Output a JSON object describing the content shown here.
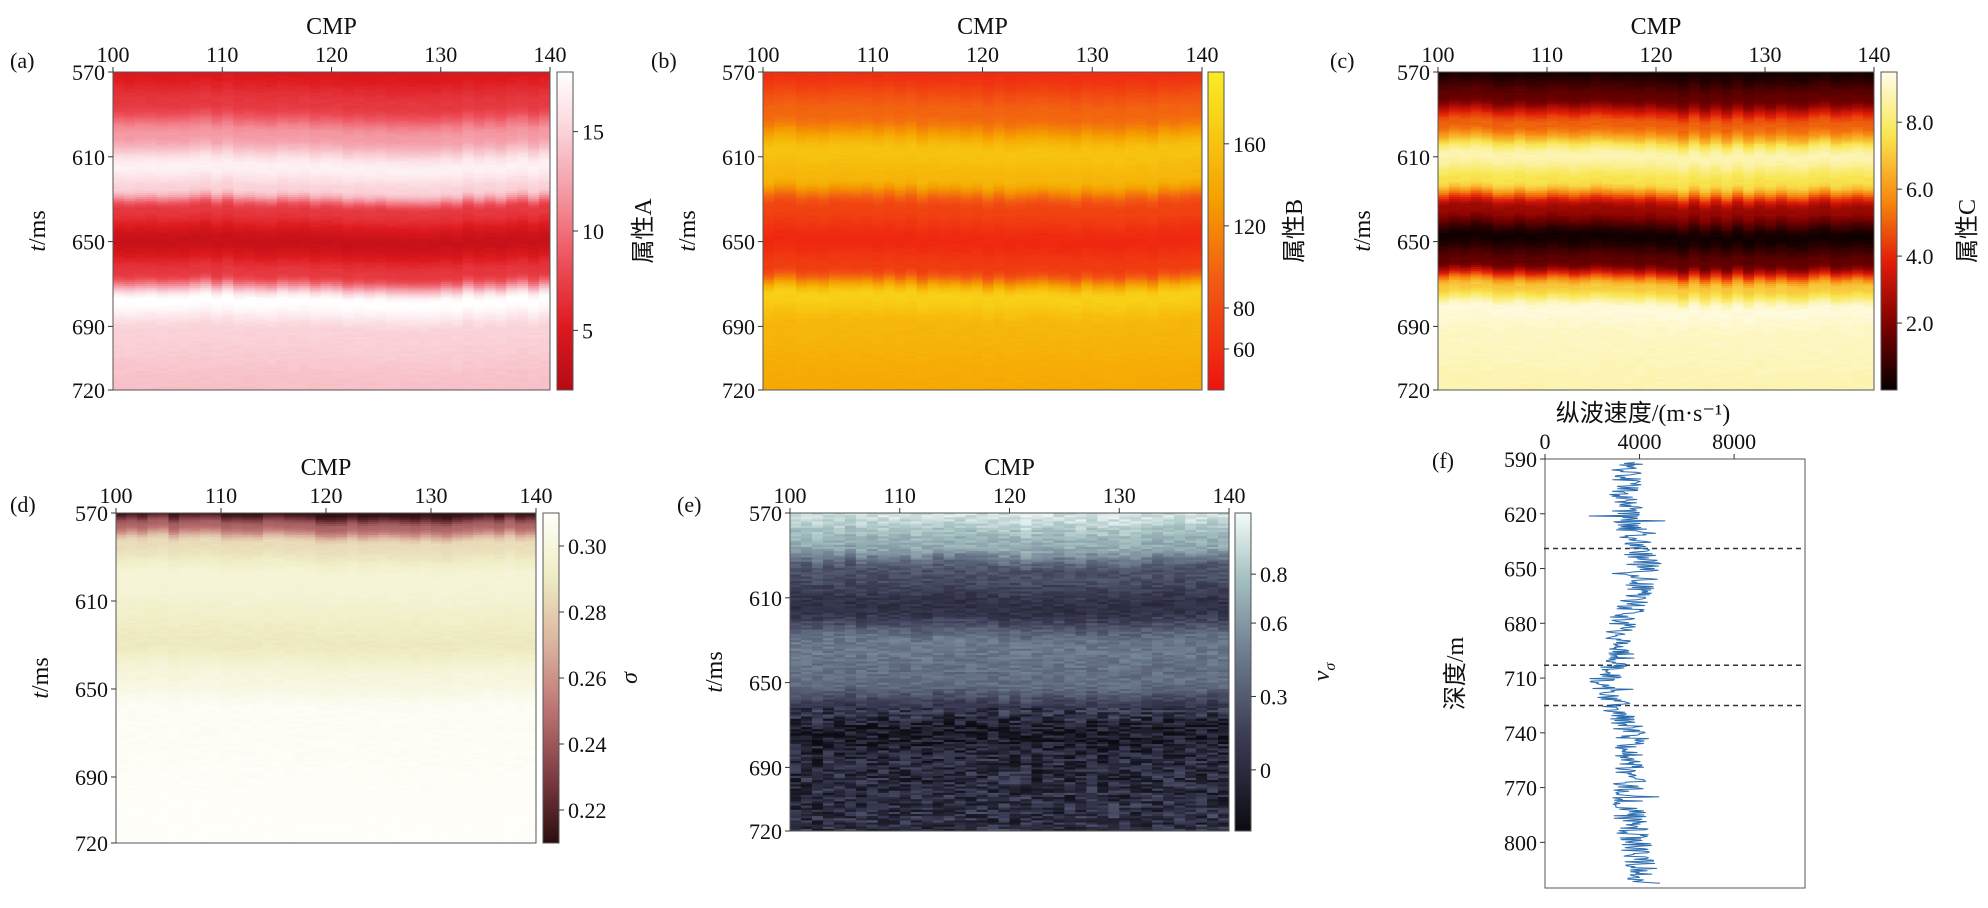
{
  "chart_data": [
    {
      "id": "a",
      "type": "heatmap",
      "panel_label": "(a)",
      "xlabel": "CMP",
      "ylabel_italic": "t",
      "ylabel_rest": "/ms",
      "x_range": [
        100,
        140
      ],
      "y_range": [
        570,
        720
      ],
      "x_ticks": [
        "100",
        "110",
        "120",
        "130",
        "140"
      ],
      "y_ticks": [
        "570",
        "610",
        "650",
        "690",
        "720"
      ],
      "colormap": "reds",
      "colorbar_label": "属性A",
      "colorbar_range": [
        2,
        18
      ],
      "colorbar_ticks": [
        "5",
        "10",
        "15"
      ],
      "colorbar_tick_values": [
        5,
        10,
        15
      ],
      "profile": [
        {
          "t": 570,
          "v": 5
        },
        {
          "t": 585,
          "v": 7
        },
        {
          "t": 600,
          "v": 12
        },
        {
          "t": 615,
          "v": 17
        },
        {
          "t": 625,
          "v": 15
        },
        {
          "t": 635,
          "v": 7
        },
        {
          "t": 650,
          "v": 3.5
        },
        {
          "t": 665,
          "v": 7
        },
        {
          "t": 678,
          "v": 18
        },
        {
          "t": 692,
          "v": 15
        },
        {
          "t": 720,
          "v": 14
        }
      ]
    },
    {
      "id": "b",
      "type": "heatmap",
      "panel_label": "(b)",
      "xlabel": "CMP",
      "ylabel_italic": "t",
      "ylabel_rest": "/ms",
      "x_range": [
        100,
        140
      ],
      "y_range": [
        570,
        720
      ],
      "x_ticks": [
        "100",
        "110",
        "120",
        "130",
        "140"
      ],
      "y_ticks": [
        "570",
        "610",
        "650",
        "690",
        "720"
      ],
      "colormap": "autumn",
      "colorbar_label": "属性B",
      "colorbar_range": [
        40,
        195
      ],
      "colorbar_ticks": [
        "60",
        "80",
        "120",
        "160"
      ],
      "colorbar_tick_values": [
        60,
        80,
        120,
        160
      ],
      "profile": [
        {
          "t": 570,
          "v": 60
        },
        {
          "t": 590,
          "v": 100
        },
        {
          "t": 608,
          "v": 160
        },
        {
          "t": 620,
          "v": 150
        },
        {
          "t": 635,
          "v": 75
        },
        {
          "t": 650,
          "v": 55
        },
        {
          "t": 662,
          "v": 70
        },
        {
          "t": 676,
          "v": 170
        },
        {
          "t": 690,
          "v": 150
        },
        {
          "t": 720,
          "v": 140
        }
      ]
    },
    {
      "id": "c",
      "type": "heatmap",
      "panel_label": "(c)",
      "xlabel": "CMP",
      "ylabel_italic": "t",
      "ylabel_rest": "/ms",
      "x_range": [
        100,
        140
      ],
      "y_range": [
        570,
        720
      ],
      "x_ticks": [
        "100",
        "110",
        "120",
        "130",
        "140"
      ],
      "y_ticks": [
        "570",
        "610",
        "650",
        "690",
        "720"
      ],
      "colormap": "hot",
      "colorbar_label": "属性C",
      "colorbar_range": [
        0,
        9.5
      ],
      "colorbar_ticks": [
        "2.0",
        "4.0",
        "6.0",
        "8.0"
      ],
      "colorbar_tick_values": [
        2,
        4,
        6,
        8
      ],
      "profile": [
        {
          "t": 570,
          "v": 0.3
        },
        {
          "t": 582,
          "v": 1.5
        },
        {
          "t": 595,
          "v": 5
        },
        {
          "t": 610,
          "v": 8.8
        },
        {
          "t": 622,
          "v": 7.5
        },
        {
          "t": 635,
          "v": 2.5
        },
        {
          "t": 648,
          "v": 0.2
        },
        {
          "t": 660,
          "v": 1.5
        },
        {
          "t": 672,
          "v": 7
        },
        {
          "t": 682,
          "v": 9.3
        },
        {
          "t": 695,
          "v": 9
        },
        {
          "t": 720,
          "v": 8.8
        }
      ]
    },
    {
      "id": "d",
      "type": "heatmap",
      "panel_label": "(d)",
      "xlabel": "CMP",
      "ylabel_italic": "t",
      "ylabel_rest": "/ms",
      "x_range": [
        100,
        140
      ],
      "y_range": [
        570,
        720
      ],
      "x_ticks": [
        "100",
        "110",
        "120",
        "130",
        "140"
      ],
      "y_ticks": [
        "570",
        "610",
        "650",
        "690",
        "720"
      ],
      "colormap": "pink",
      "colorbar_label": "σ",
      "colorbar_range": [
        0.21,
        0.31
      ],
      "colorbar_ticks": [
        "0.22",
        "0.24",
        "0.26",
        "0.28",
        "0.30"
      ],
      "colorbar_tick_values": [
        0.22,
        0.24,
        0.26,
        0.28,
        0.3
      ],
      "profile": [
        {
          "t": 570,
          "v": 0.212
        },
        {
          "t": 576,
          "v": 0.245
        },
        {
          "t": 584,
          "v": 0.285
        },
        {
          "t": 600,
          "v": 0.298
        },
        {
          "t": 630,
          "v": 0.29
        },
        {
          "t": 645,
          "v": 0.3
        },
        {
          "t": 660,
          "v": 0.308
        },
        {
          "t": 720,
          "v": 0.31
        }
      ]
    },
    {
      "id": "e",
      "type": "heatmap",
      "panel_label": "(e)",
      "xlabel": "CMP",
      "ylabel_italic": "t",
      "ylabel_rest": "/ms",
      "x_range": [
        100,
        140
      ],
      "y_range": [
        570,
        720
      ],
      "x_ticks": [
        "100",
        "110",
        "120",
        "130",
        "140"
      ],
      "y_ticks": [
        "570",
        "610",
        "650",
        "690",
        "720"
      ],
      "colormap": "bone",
      "colorbar_label": "vσ",
      "colorbar_label_main": "v",
      "colorbar_label_sub": "σ",
      "colorbar_range": [
        -0.25,
        1.05
      ],
      "colorbar_ticks": [
        "0",
        "0.3",
        "0.6",
        "0.8"
      ],
      "colorbar_tick_values": [
        0,
        0.3,
        0.6,
        0.8
      ],
      "profile": [
        {
          "t": 570,
          "v": 0.95
        },
        {
          "t": 585,
          "v": 0.7
        },
        {
          "t": 598,
          "v": 0.25
        },
        {
          "t": 615,
          "v": 0.05
        },
        {
          "t": 632,
          "v": 0.45
        },
        {
          "t": 650,
          "v": 0.4
        },
        {
          "t": 665,
          "v": 0.05
        },
        {
          "t": 672,
          "v": -0.1
        },
        {
          "t": 690,
          "v": 0.0
        },
        {
          "t": 720,
          "v": 0.05
        }
      ]
    },
    {
      "id": "f",
      "type": "line",
      "panel_label": "(f)",
      "xlabel": "纵波速度/(m·s⁻¹)",
      "ylabel": "深度/m",
      "x_range": [
        0,
        11000
      ],
      "y_range": [
        590,
        825
      ],
      "x_ticks": [
        "0",
        "4000",
        "8000"
      ],
      "x_tick_values": [
        0,
        4000,
        8000
      ],
      "y_ticks": [
        "590",
        "620",
        "650",
        "680",
        "710",
        "740",
        "770",
        "800"
      ],
      "y_tick_values": [
        590,
        620,
        650,
        680,
        710,
        740,
        770,
        800
      ],
      "horizontal_lines": [
        639,
        703,
        725
      ],
      "series": [
        {
          "color": "#2a6cb1",
          "trend": [
            {
              "depth": 591,
              "vel": 3500
            },
            {
              "depth": 610,
              "vel": 3300
            },
            {
              "depth": 630,
              "vel": 3700
            },
            {
              "depth": 650,
              "vel": 4200
            },
            {
              "depth": 670,
              "vel": 3700
            },
            {
              "depth": 685,
              "vel": 3000
            },
            {
              "depth": 700,
              "vel": 3200
            },
            {
              "depth": 712,
              "vel": 2400
            },
            {
              "depth": 725,
              "vel": 3000
            },
            {
              "depth": 740,
              "vel": 3700
            },
            {
              "depth": 760,
              "vel": 3600
            },
            {
              "depth": 780,
              "vel": 3500
            },
            {
              "depth": 800,
              "vel": 3800
            },
            {
              "depth": 822,
              "vel": 4200
            }
          ]
        }
      ]
    }
  ]
}
